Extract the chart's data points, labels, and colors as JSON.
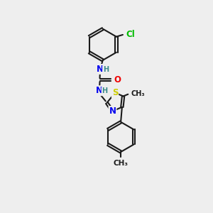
{
  "bg_color": "#eeeeee",
  "bond_color": "#1a1a1a",
  "bond_width": 1.5,
  "atom_colors": {
    "N": "#0000ee",
    "O": "#ee0000",
    "S": "#cccc00",
    "Cl": "#00bb00",
    "C": "#1a1a1a",
    "H": "#3a8a8a"
  },
  "font_size_atom": 8.5,
  "font_size_small": 7.0,
  "font_size_methyl": 7.5
}
